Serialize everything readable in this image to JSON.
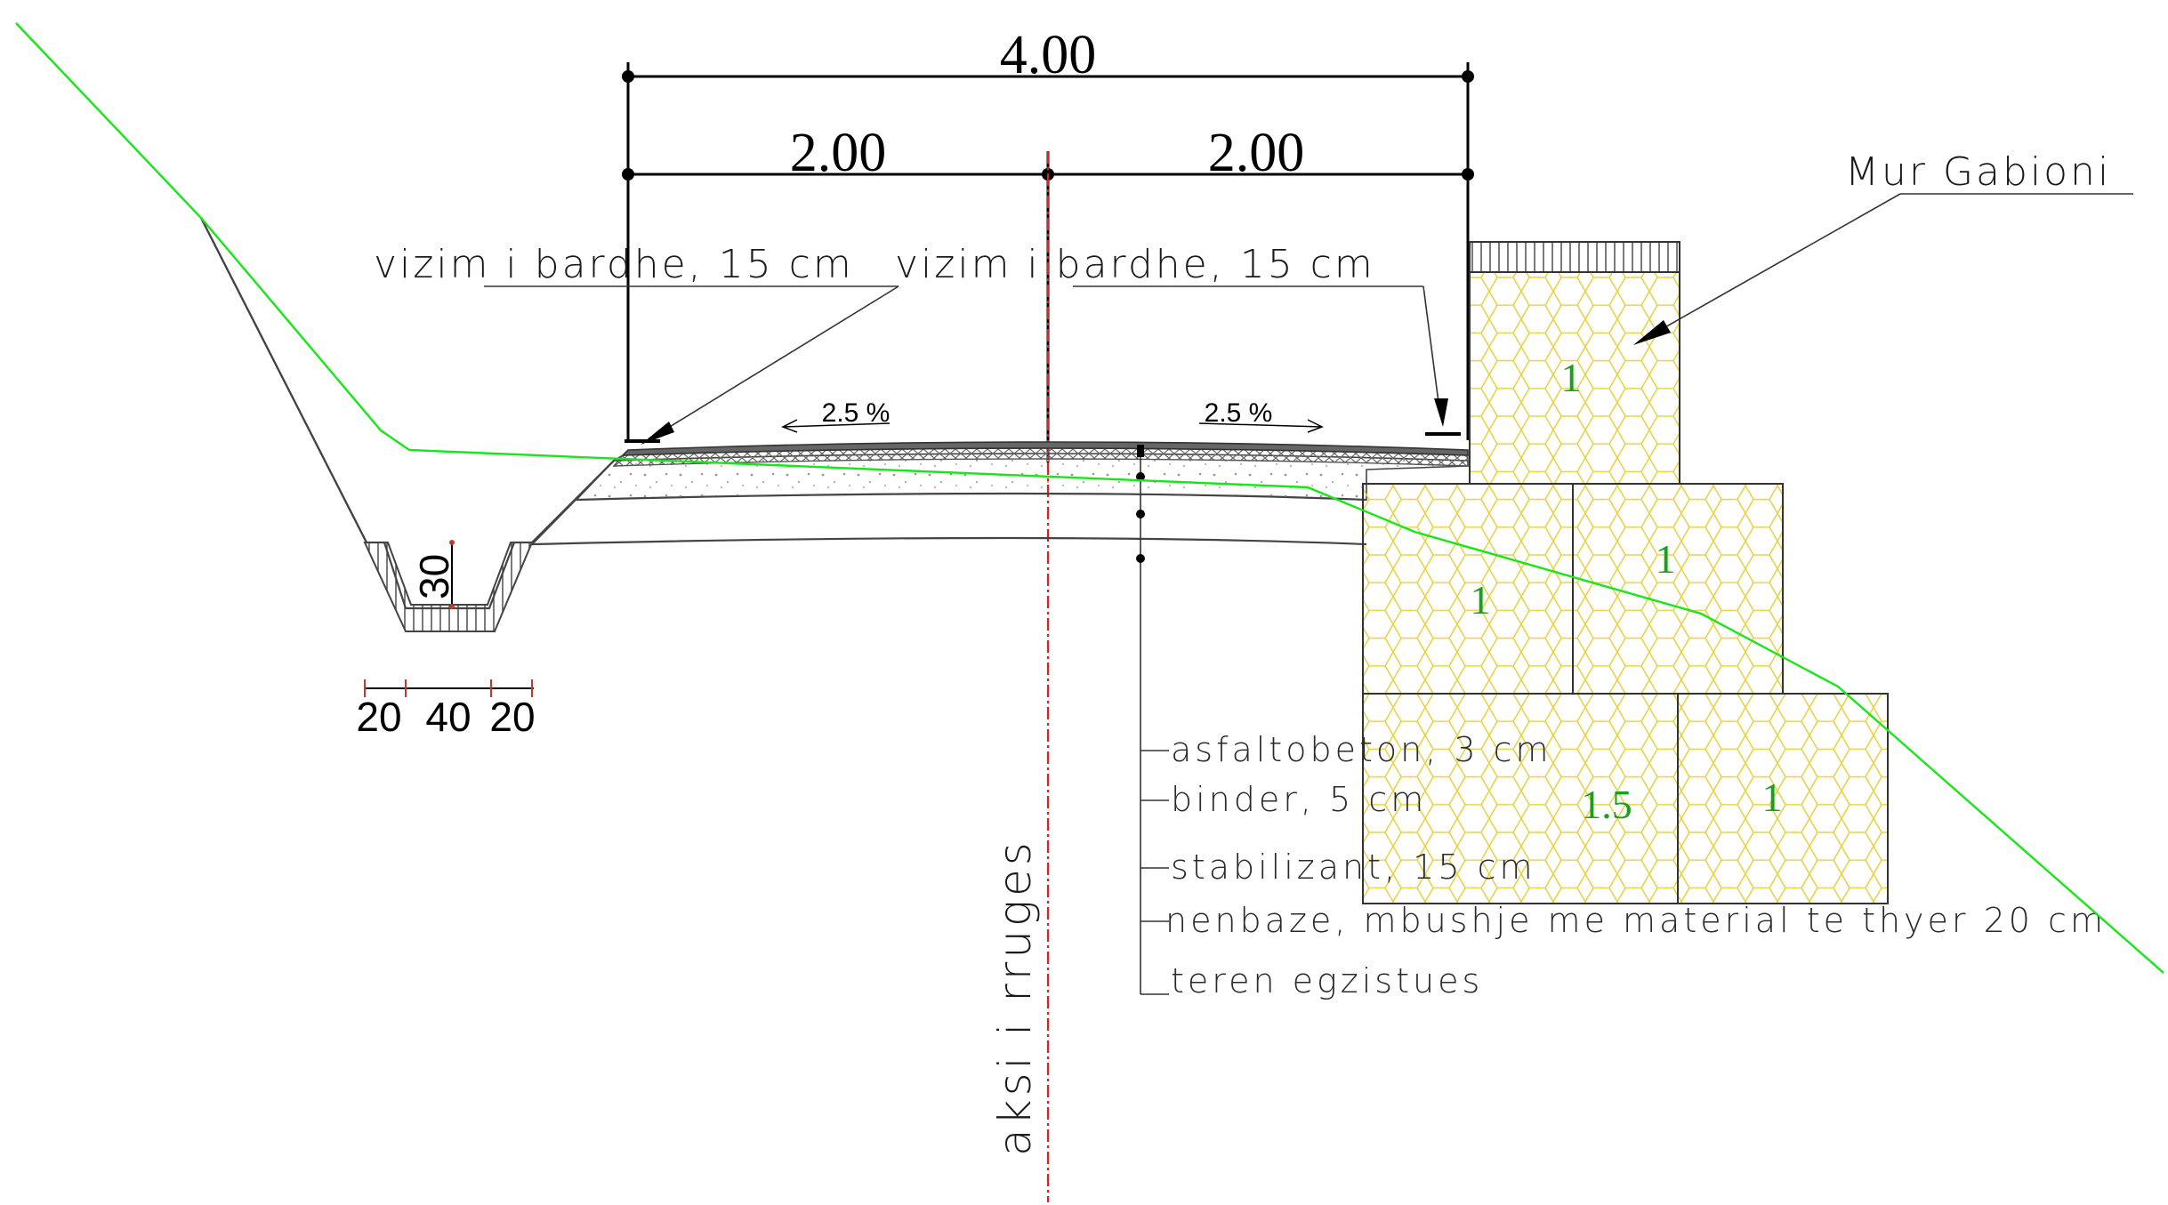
{
  "dimensions": {
    "total_width": "4.00",
    "left_half": "2.00",
    "right_half": "2.00"
  },
  "markings": {
    "left_label": "vizim i bardhe, 15 cm",
    "right_label": "vizim i bardhe, 15 cm"
  },
  "slopes": {
    "left": "2.5 %",
    "right": "2.5 %"
  },
  "wall": {
    "label": "Mur Gabioni",
    "blocks": [
      "1",
      "1",
      "1",
      "1.5",
      "1"
    ]
  },
  "axis": {
    "label": "aksi i rruges"
  },
  "ditch": {
    "depth": "30",
    "widths": [
      "20",
      "40",
      "20"
    ]
  },
  "layers": [
    "asfaltobeton,   3 cm",
    "binder, 5 cm",
    "stabilizant,   15 cm",
    "nenbaze, mbushje me material te thyer 20 cm",
    "teren egzistues"
  ],
  "colors": {
    "terrain_line": "#19e619",
    "axis_line": "#e02020",
    "gabion_mesh": "#e6d34a",
    "gabion_text": "#1aa01a"
  }
}
